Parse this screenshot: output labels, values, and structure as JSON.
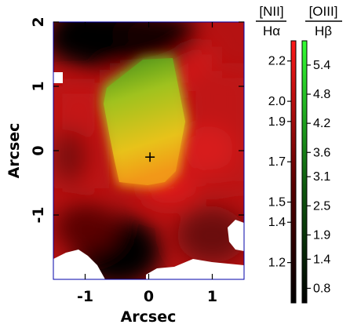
{
  "chart_data": {
    "type": "heatmap",
    "xlabel": "Arcsec",
    "ylabel": "Arcsec",
    "xlim": [
      -1.5,
      1.5
    ],
    "ylim": [
      -2,
      2
    ],
    "x_ticks": [
      "-1",
      "0",
      "1"
    ],
    "x_tick_values": [
      -1,
      0,
      1
    ],
    "y_ticks": [
      "-1",
      "0",
      "1",
      "2"
    ],
    "y_tick_values": [
      -1,
      0,
      1,
      2
    ],
    "center_marker": {
      "symbol": "+",
      "x": 0.02,
      "y": -0.1
    },
    "colorbars": [
      {
        "name": "nii",
        "numerator": "[NII]",
        "denominator": "Hα",
        "color_low": "#000000",
        "color_high": "#ff1a1a",
        "tick_labels": [
          "2.2",
          "2.0",
          "1.9",
          "1.7",
          "1.5",
          "1.4",
          "1.2"
        ],
        "tick_values": [
          2.2,
          2.0,
          1.9,
          1.7,
          1.5,
          1.4,
          1.2
        ],
        "range": [
          1.0,
          2.3
        ]
      },
      {
        "name": "oiii",
        "numerator": "[OIII]",
        "denominator": "Hβ",
        "color_low": "#000000",
        "color_high": "#33ff33",
        "tick_labels": [
          "5.4",
          "4.8",
          "4.2",
          "3.6",
          "3.1",
          "2.5",
          "1.9",
          "1.4",
          "0.8"
        ],
        "tick_values": [
          5.4,
          4.8,
          4.2,
          3.6,
          3.1,
          2.5,
          1.9,
          1.4,
          0.8
        ],
        "range": [
          0.5,
          5.9
        ]
      }
    ],
    "colors": {
      "frame": "#0000aa",
      "no_data": "#ffffff"
    }
  }
}
